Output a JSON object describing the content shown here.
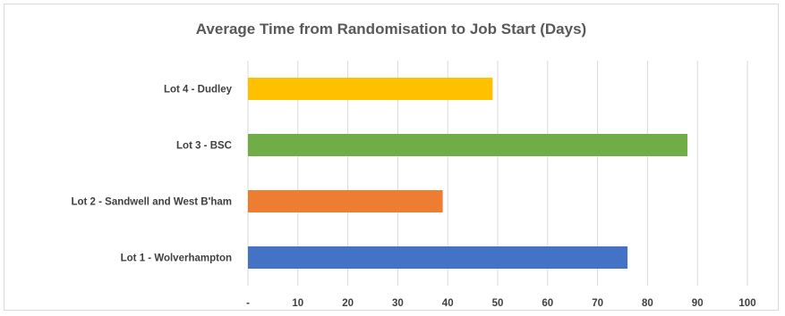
{
  "chart_data": {
    "type": "bar",
    "orientation": "horizontal",
    "title": "Average Time from Randomisation to Job Start (Days)",
    "categories": [
      "Lot 4 - Dudley",
      "Lot 3 - BSC",
      "Lot 2 - Sandwell and West B'ham",
      "Lot 1 - Wolverhampton"
    ],
    "values": [
      49,
      88,
      39,
      76
    ],
    "colors": [
      "#FFC000",
      "#70AD47",
      "#ED7D31",
      "#4472C4"
    ],
    "xlim": [
      0,
      100
    ],
    "xticks": [
      0,
      10,
      20,
      30,
      40,
      50,
      60,
      70,
      80,
      90,
      100
    ],
    "xtick_labels": [
      "-",
      "10",
      "20",
      "30",
      "40",
      "50",
      "60",
      "70",
      "80",
      "90",
      "100"
    ],
    "grid": true,
    "legend": "none"
  }
}
